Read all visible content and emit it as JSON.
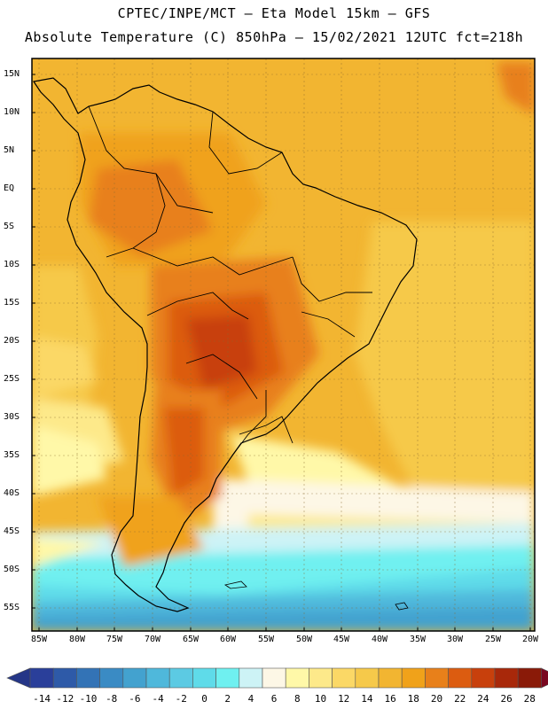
{
  "header": {
    "line1": "CPTEC/INPE/MCT —  Eta Model 15km — GFS",
    "line2": "Absolute Temperature (C) 850hPa — 15/02/2021 12UTC fct=218h"
  },
  "axes": {
    "lat_labels": [
      "15N",
      "10N",
      "5N",
      "EQ",
      "5S",
      "10S",
      "15S",
      "20S",
      "25S",
      "30S",
      "35S",
      "40S",
      "45S",
      "50S",
      "55S"
    ],
    "lon_labels": [
      "85W",
      "80W",
      "75W",
      "70W",
      "65W",
      "60W",
      "55W",
      "50W",
      "45W",
      "40W",
      "35W",
      "30W",
      "25W",
      "20W"
    ]
  },
  "colorbar": {
    "labels": [
      "-14",
      "-12",
      "-10",
      "-8",
      "-6",
      "-4",
      "-2",
      "0",
      "2",
      "4",
      "6",
      "8",
      "10",
      "12",
      "14",
      "16",
      "18",
      "20",
      "22",
      "24",
      "26",
      "28"
    ],
    "colors": [
      "#2a3f9a",
      "#2e5aa8",
      "#3373b6",
      "#3a8bc4",
      "#43a2cf",
      "#4fb8db",
      "#5ccae3",
      "#5fdbe9",
      "#6ff0f0",
      "#cdf3f6",
      "#fdf7e6",
      "#fff8a8",
      "#fde98a",
      "#fbd866",
      "#f6c94a",
      "#f2b531",
      "#f0a21a",
      "#e8801a",
      "#dc5c10",
      "#c8400c",
      "#a8280a",
      "#8a1a08"
    ],
    "end_low": "#253687",
    "end_high": "#7a0820"
  }
}
